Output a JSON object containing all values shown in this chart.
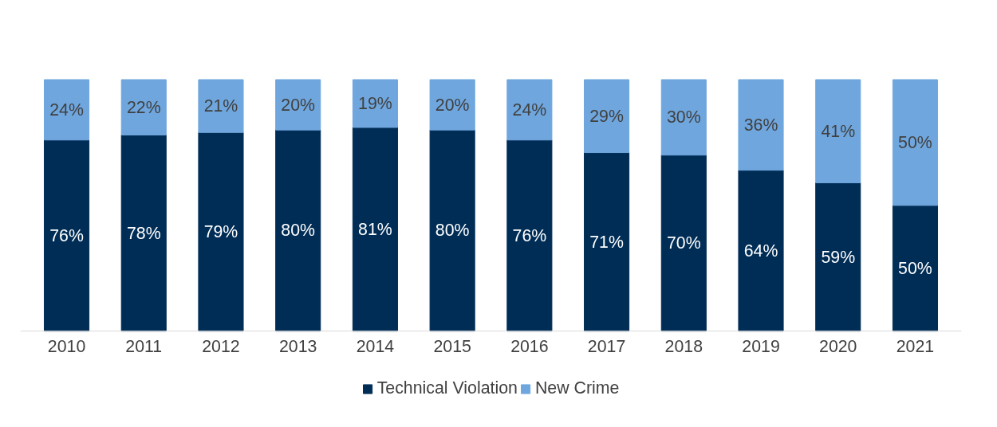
{
  "chart_data": {
    "type": "bar",
    "stacked": true,
    "categories": [
      "2010",
      "2011",
      "2012",
      "2013",
      "2014",
      "2015",
      "2016",
      "2017",
      "2018",
      "2019",
      "2020",
      "2021"
    ],
    "series": [
      {
        "name": "Technical Violation",
        "color": "#002d56",
        "values": [
          76,
          78,
          79,
          80,
          81,
          80,
          76,
          71,
          70,
          64,
          59,
          50
        ],
        "value_labels": [
          "76%",
          "78%",
          "79%",
          "80%",
          "81%",
          "80%",
          "76%",
          "71%",
          "70%",
          "64%",
          "59%",
          "50%"
        ]
      },
      {
        "name": "New Crime",
        "color": "#6fa6de",
        "values": [
          24,
          22,
          21,
          20,
          19,
          20,
          24,
          29,
          30,
          36,
          41,
          50
        ],
        "value_labels": [
          "24%",
          "22%",
          "21%",
          "20%",
          "19%",
          "20%",
          "24%",
          "29%",
          "30%",
          "36%",
          "41%",
          "50%"
        ]
      }
    ],
    "legend": "bottom"
  }
}
